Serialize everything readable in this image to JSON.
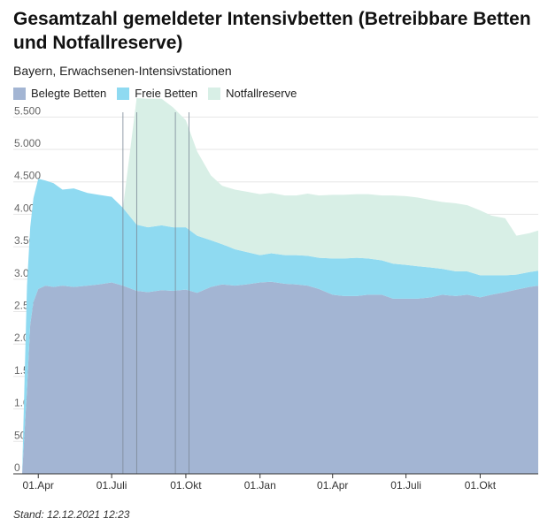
{
  "title": "Gesamtzahl gemeldeter Intensivbetten (Betreibbare Betten und Notfallreserve)",
  "subtitle": "Bayern, Erwachsenen-Intensivstationen",
  "footer": "Stand: 12.12.2021 12:23",
  "chart_data": {
    "type": "area",
    "stacked": true,
    "title": "Gesamtzahl gemeldeter Intensivbetten (Betreibbare Betten und Notfallreserve)",
    "subtitle": "Bayern, Erwachsenen-Intensivstationen",
    "ylim": [
      0,
      5600
    ],
    "yticks": [
      0,
      500,
      1000,
      1500,
      2000,
      2500,
      3000,
      3500,
      4000,
      4500,
      5000,
      5500
    ],
    "ytick_labels": [
      "0",
      "500",
      "1.000",
      "1.500",
      "2.000",
      "2.500",
      "3.000",
      "3.500",
      "4.000",
      "4.500",
      "5.000",
      "5.500"
    ],
    "xlim": [
      "2020-03-01",
      "2021-12-12"
    ],
    "xticks": [
      "2020-04-01",
      "2020-07-01",
      "2020-10-01",
      "2021-01-01",
      "2021-04-01",
      "2021-07-01",
      "2021-10-01"
    ],
    "xtick_labels": [
      "01.Apr",
      "01.Juli",
      "01.Okt",
      "01.Jan",
      "01.Apr",
      "01.Juli",
      "01.Okt"
    ],
    "vlines": [
      "2020-07-15",
      "2020-08-01",
      "2020-09-18",
      "2020-10-05"
    ],
    "legend_position": "top-left",
    "grid": "horizontal",
    "x": [
      "2020-03-12",
      "2020-03-18",
      "2020-03-22",
      "2020-03-26",
      "2020-04-01",
      "2020-04-10",
      "2020-04-20",
      "2020-05-01",
      "2020-05-15",
      "2020-06-01",
      "2020-06-15",
      "2020-07-01",
      "2020-07-15",
      "2020-08-01",
      "2020-08-15",
      "2020-09-01",
      "2020-09-15",
      "2020-10-01",
      "2020-10-15",
      "2020-11-01",
      "2020-11-15",
      "2020-12-01",
      "2020-12-15",
      "2021-01-01",
      "2021-01-15",
      "2021-02-01",
      "2021-02-15",
      "2021-03-01",
      "2021-03-15",
      "2021-04-01",
      "2021-04-15",
      "2021-05-01",
      "2021-05-15",
      "2021-06-01",
      "2021-06-15",
      "2021-07-01",
      "2021-07-15",
      "2021-08-01",
      "2021-08-15",
      "2021-09-01",
      "2021-09-15",
      "2021-10-01",
      "2021-10-15",
      "2021-11-01",
      "2021-11-15",
      "2021-12-01",
      "2021-12-12"
    ],
    "series": [
      {
        "name": "Belegte Betten",
        "color": "#a3b5d3",
        "values": [
          0,
          1300,
          2300,
          2650,
          2850,
          2900,
          2880,
          2900,
          2880,
          2900,
          2920,
          2950,
          2900,
          2820,
          2800,
          2830,
          2820,
          2840,
          2790,
          2880,
          2920,
          2900,
          2920,
          2950,
          2960,
          2930,
          2920,
          2900,
          2850,
          2760,
          2740,
          2740,
          2760,
          2760,
          2700,
          2700,
          2700,
          2720,
          2760,
          2740,
          2760,
          2720,
          2760,
          2800,
          2840,
          2880,
          2900
        ]
      },
      {
        "name": "Freie Betten",
        "color": "#8fdaf1",
        "values": [
          0,
          1600,
          1500,
          1600,
          1700,
          1620,
          1600,
          1480,
          1520,
          1430,
          1380,
          1320,
          1200,
          1020,
          1000,
          1000,
          980,
          960,
          880,
          720,
          620,
          560,
          500,
          420,
          440,
          440,
          450,
          460,
          480,
          560,
          580,
          590,
          560,
          530,
          540,
          520,
          500,
          460,
          400,
          380,
          360,
          340,
          300,
          260,
          230,
          230,
          230
        ]
      },
      {
        "name": "Notfallreserve",
        "color": "#d8efe6",
        "values": [
          0,
          0,
          0,
          0,
          0,
          0,
          0,
          0,
          0,
          0,
          0,
          0,
          0,
          1950,
          1980,
          1950,
          1850,
          1650,
          1300,
          1000,
          900,
          920,
          930,
          940,
          930,
          920,
          920,
          960,
          960,
          980,
          980,
          980,
          990,
          1000,
          1050,
          1060,
          1060,
          1040,
          1030,
          1050,
          1020,
          1000,
          920,
          880,
          600,
          600,
          620
        ]
      }
    ]
  }
}
